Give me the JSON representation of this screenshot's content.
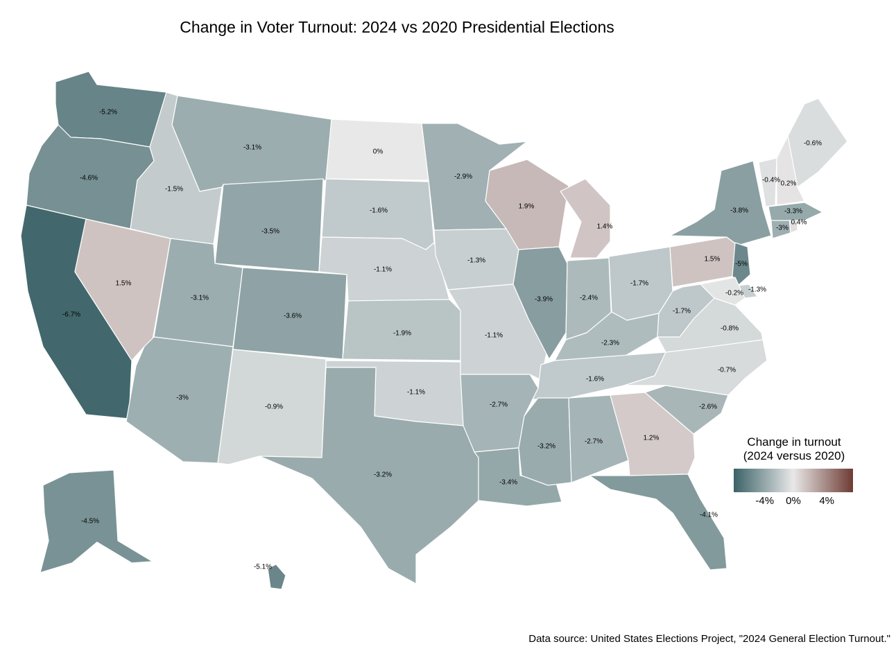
{
  "title": "Change in Voter Turnout: 2024 vs 2020 Presidential Elections",
  "source": "Data source: United States Elections Project, \"2024 General Election Turnout.\"",
  "legend": {
    "title_line1": "Change in turnout",
    "title_line2": "(2024 versus 2020)",
    "ticks": [
      "-4%",
      "0%",
      "4%"
    ],
    "scale_min": -7,
    "scale_max": 7,
    "color_low": "#3b6267",
    "color_mid": "#e8e8e8",
    "color_high": "#6e3b33"
  },
  "chart_data": {
    "type": "choropleth",
    "unit": "%",
    "states": [
      {
        "id": "WA",
        "value": -5.2,
        "label": "-5.2%"
      },
      {
        "id": "OR",
        "value": -4.6,
        "label": "-4.6%"
      },
      {
        "id": "CA",
        "value": -6.7,
        "label": "-6.7%"
      },
      {
        "id": "NV",
        "value": 1.5,
        "label": "1.5%"
      },
      {
        "id": "ID",
        "value": -1.5,
        "label": "-1.5%"
      },
      {
        "id": "MT",
        "value": -3.1,
        "label": "-3.1%"
      },
      {
        "id": "WY",
        "value": -3.5,
        "label": "-3.5%"
      },
      {
        "id": "UT",
        "value": -3.1,
        "label": "-3.1%"
      },
      {
        "id": "AZ",
        "value": -3,
        "label": "-3%"
      },
      {
        "id": "CO",
        "value": -3.6,
        "label": "-3.6%"
      },
      {
        "id": "NM",
        "value": -0.9,
        "label": "-0.9%"
      },
      {
        "id": "ND",
        "value": 0,
        "label": "0%"
      },
      {
        "id": "SD",
        "value": -1.6,
        "label": "-1.6%"
      },
      {
        "id": "NE",
        "value": -1.1,
        "label": "-1.1%"
      },
      {
        "id": "KS",
        "value": -1.9,
        "label": "-1.9%"
      },
      {
        "id": "OK",
        "value": -1.1,
        "label": "-1.1%"
      },
      {
        "id": "TX",
        "value": -3.2,
        "label": "-3.2%"
      },
      {
        "id": "MN",
        "value": -2.9,
        "label": "-2.9%"
      },
      {
        "id": "IA",
        "value": -1.3,
        "label": "-1.3%"
      },
      {
        "id": "MO",
        "value": -1.1,
        "label": "-1.1%"
      },
      {
        "id": "AR",
        "value": -2.7,
        "label": "-2.7%"
      },
      {
        "id": "LA",
        "value": -3.4,
        "label": "-3.4%"
      },
      {
        "id": "WI",
        "value": 1.9,
        "label": "1.9%"
      },
      {
        "id": "IL",
        "value": -3.9,
        "label": "-3.9%"
      },
      {
        "id": "MI",
        "value": 1.4,
        "label": "1.4%"
      },
      {
        "id": "IN",
        "value": -2.4,
        "label": "-2.4%"
      },
      {
        "id": "OH",
        "value": -1.7,
        "label": "-1.7%"
      },
      {
        "id": "KY",
        "value": -2.3,
        "label": "-2.3%"
      },
      {
        "id": "TN",
        "value": -1.6,
        "label": "-1.6%"
      },
      {
        "id": "MS",
        "value": -3.2,
        "label": "-3.2%"
      },
      {
        "id": "AL",
        "value": -2.7,
        "label": "-2.7%"
      },
      {
        "id": "GA",
        "value": 1.2,
        "label": "1.2%"
      },
      {
        "id": "FL",
        "value": -4.1,
        "label": "-4.1%"
      },
      {
        "id": "SC",
        "value": -2.6,
        "label": "-2.6%"
      },
      {
        "id": "NC",
        "value": -0.7,
        "label": "-0.7%"
      },
      {
        "id": "VA",
        "value": -0.8,
        "label": "-0.8%"
      },
      {
        "id": "WV",
        "value": -1.7,
        "label": "-1.7%"
      },
      {
        "id": "PA",
        "value": 1.5,
        "label": "1.5%"
      },
      {
        "id": "NY",
        "value": -3.8,
        "label": "-3.8%"
      },
      {
        "id": "NJ",
        "value": -5,
        "label": "-5%"
      },
      {
        "id": "DE",
        "value": -1.3,
        "label": "-1.3%"
      },
      {
        "id": "MD",
        "value": -0.2,
        "label": "-0.2%"
      },
      {
        "id": "CT",
        "value": -3,
        "label": "-3%"
      },
      {
        "id": "RI",
        "value": 0.4,
        "label": "0.4%"
      },
      {
        "id": "MA",
        "value": -3.3,
        "label": "-3.3%"
      },
      {
        "id": "VT",
        "value": -0.4,
        "label": "-0.4%"
      },
      {
        "id": "NH",
        "value": 0.2,
        "label": "0.2%"
      },
      {
        "id": "ME",
        "value": -0.6,
        "label": "-0.6%"
      },
      {
        "id": "AK",
        "value": -4.5,
        "label": "-4.5%"
      },
      {
        "id": "HI",
        "value": -5.1,
        "label": "-5.1%"
      }
    ]
  }
}
